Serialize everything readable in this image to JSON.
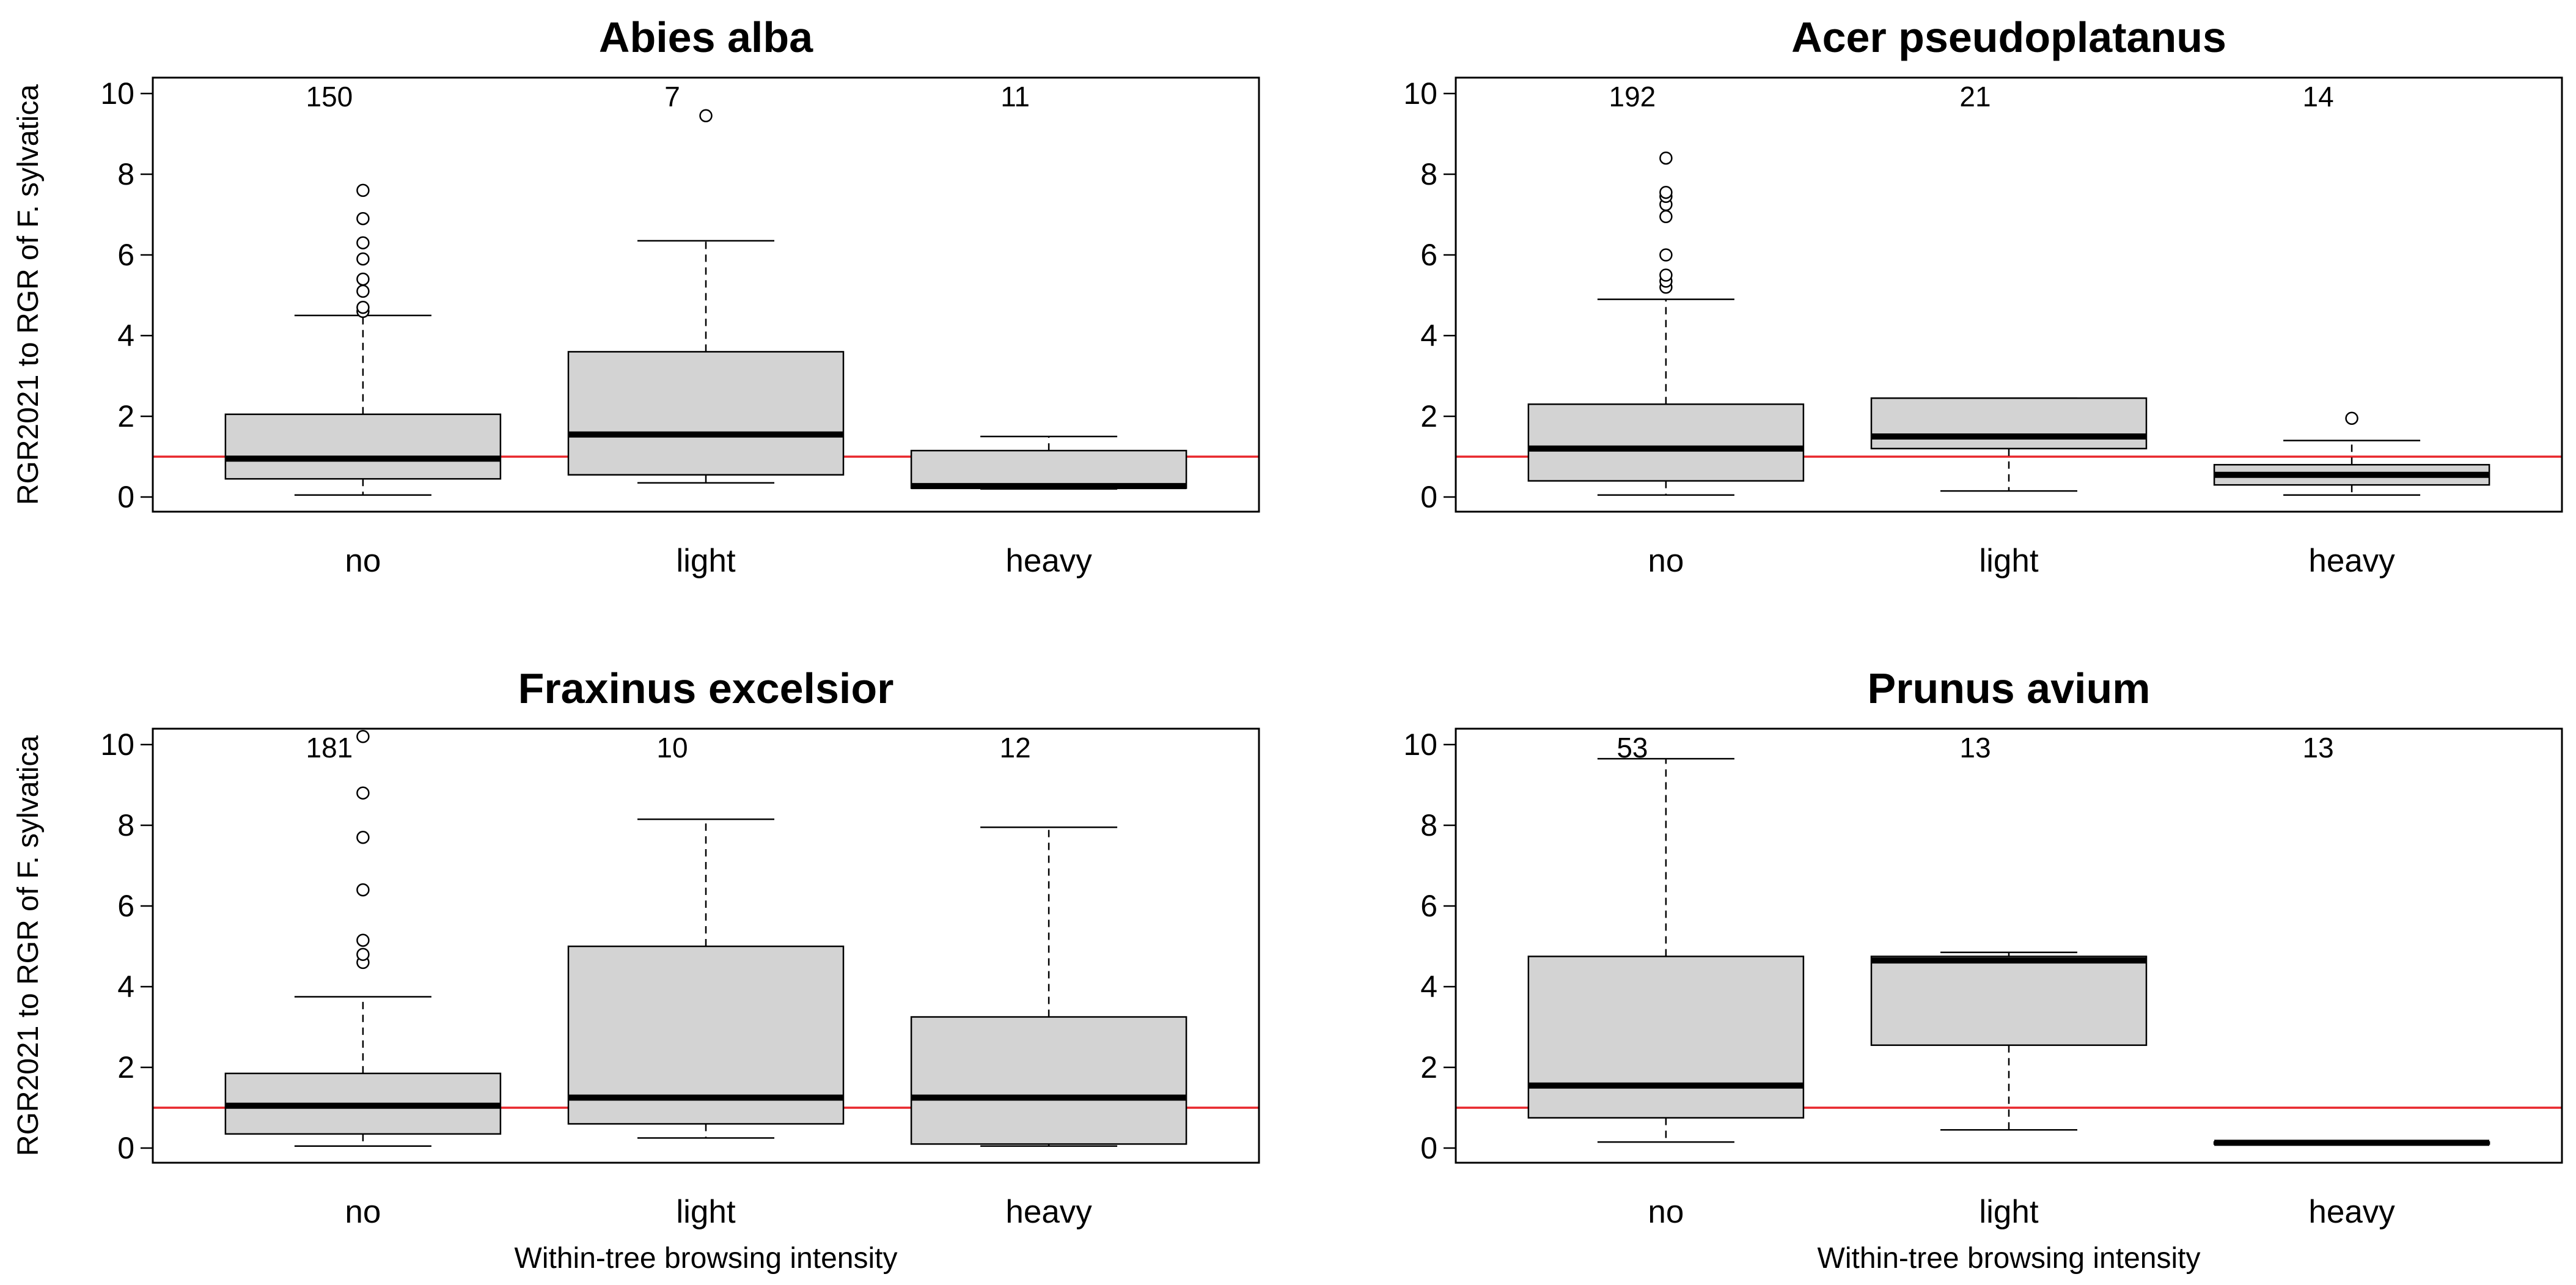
{
  "figure": {
    "ylabel": "RGR2021 to RGR of F. sylvatica",
    "xlabel": "Within-tree browsing intensity"
  },
  "chart_data": [
    {
      "type": "box",
      "title": "Abies alba",
      "ylabel": "RGR2021 to RGR of F. sylvatica",
      "xlabel": "",
      "ylim": [
        0,
        10
      ],
      "yticks": [
        0,
        2,
        4,
        6,
        8,
        10
      ],
      "reference_line": {
        "y": 1,
        "color": "#e8262b"
      },
      "box_color": "#d3d3d3",
      "groups": [
        {
          "category": "no",
          "n": "150",
          "whisker_low": 0.05,
          "q1": 0.45,
          "median": 0.95,
          "q3": 2.05,
          "whisker_high": 4.5,
          "outliers": [
            4.6,
            4.7,
            5.1,
            5.4,
            5.9,
            6.3,
            6.9,
            7.6
          ]
        },
        {
          "category": "light",
          "n": "7",
          "whisker_low": 0.35,
          "q1": 0.55,
          "median": 1.55,
          "q3": 3.6,
          "whisker_high": 6.35,
          "outliers": [
            9.45
          ]
        },
        {
          "category": "heavy",
          "n": "11",
          "whisker_low": 0.2,
          "q1": 0.22,
          "median": 0.27,
          "q3": 1.15,
          "whisker_high": 1.5,
          "outliers": []
        }
      ]
    },
    {
      "type": "box",
      "title": "Acer pseudoplatanus",
      "ylabel": "",
      "xlabel": "",
      "ylim": [
        0,
        10
      ],
      "yticks": [
        0,
        2,
        4,
        6,
        8,
        10
      ],
      "reference_line": {
        "y": 1,
        "color": "#e8262b"
      },
      "box_color": "#d3d3d3",
      "groups": [
        {
          "category": "no",
          "n": "192",
          "whisker_low": 0.05,
          "q1": 0.4,
          "median": 1.2,
          "q3": 2.3,
          "whisker_high": 4.9,
          "outliers": [
            5.2,
            5.35,
            5.5,
            6.0,
            6.95,
            7.25,
            7.45,
            7.55,
            8.4
          ]
        },
        {
          "category": "light",
          "n": "21",
          "whisker_low": 0.15,
          "q1": 1.2,
          "median": 1.5,
          "q3": 2.45,
          "whisker_high": 2.45,
          "outliers": []
        },
        {
          "category": "heavy",
          "n": "14",
          "whisker_low": 0.05,
          "q1": 0.3,
          "median": 0.55,
          "q3": 0.8,
          "whisker_high": 1.4,
          "outliers": [
            1.95
          ]
        }
      ]
    },
    {
      "type": "box",
      "title": "Fraxinus excelsior",
      "ylabel": "RGR2021 to RGR of F. sylvatica",
      "xlabel": "Within-tree browsing intensity",
      "ylim": [
        0,
        10
      ],
      "yticks": [
        0,
        2,
        4,
        6,
        8,
        10
      ],
      "reference_line": {
        "y": 1,
        "color": "#e8262b"
      },
      "box_color": "#d3d3d3",
      "groups": [
        {
          "category": "no",
          "n": "181",
          "whisker_low": 0.05,
          "q1": 0.35,
          "median": 1.05,
          "q3": 1.85,
          "whisker_high": 3.75,
          "outliers": [
            4.6,
            4.8,
            5.15,
            6.4,
            7.7,
            8.8,
            10.2
          ]
        },
        {
          "category": "light",
          "n": "10",
          "whisker_low": 0.25,
          "q1": 0.6,
          "median": 1.25,
          "q3": 5.0,
          "whisker_high": 8.15,
          "outliers": []
        },
        {
          "category": "heavy",
          "n": "12",
          "whisker_low": 0.05,
          "q1": 0.1,
          "median": 1.25,
          "q3": 3.25,
          "whisker_high": 7.95,
          "outliers": []
        }
      ]
    },
    {
      "type": "box",
      "title": "Prunus avium",
      "ylabel": "",
      "xlabel": "Within-tree browsing intensity",
      "ylim": [
        0,
        10
      ],
      "yticks": [
        0,
        2,
        4,
        6,
        8,
        10
      ],
      "reference_line": {
        "y": 1,
        "color": "#e8262b"
      },
      "box_color": "#d3d3d3",
      "groups": [
        {
          "category": "no",
          "n": "53",
          "whisker_low": 0.15,
          "q1": 0.75,
          "median": 1.55,
          "q3": 4.75,
          "whisker_high": 9.65,
          "outliers": []
        },
        {
          "category": "light",
          "n": "13",
          "whisker_low": 0.45,
          "q1": 2.55,
          "median": 4.65,
          "q3": 4.75,
          "whisker_high": 4.85,
          "outliers": []
        },
        {
          "category": "heavy",
          "n": "13",
          "whisker_low": 0.08,
          "q1": 0.1,
          "median": 0.13,
          "q3": 0.15,
          "whisker_high": 0.18,
          "outliers": []
        }
      ]
    }
  ]
}
